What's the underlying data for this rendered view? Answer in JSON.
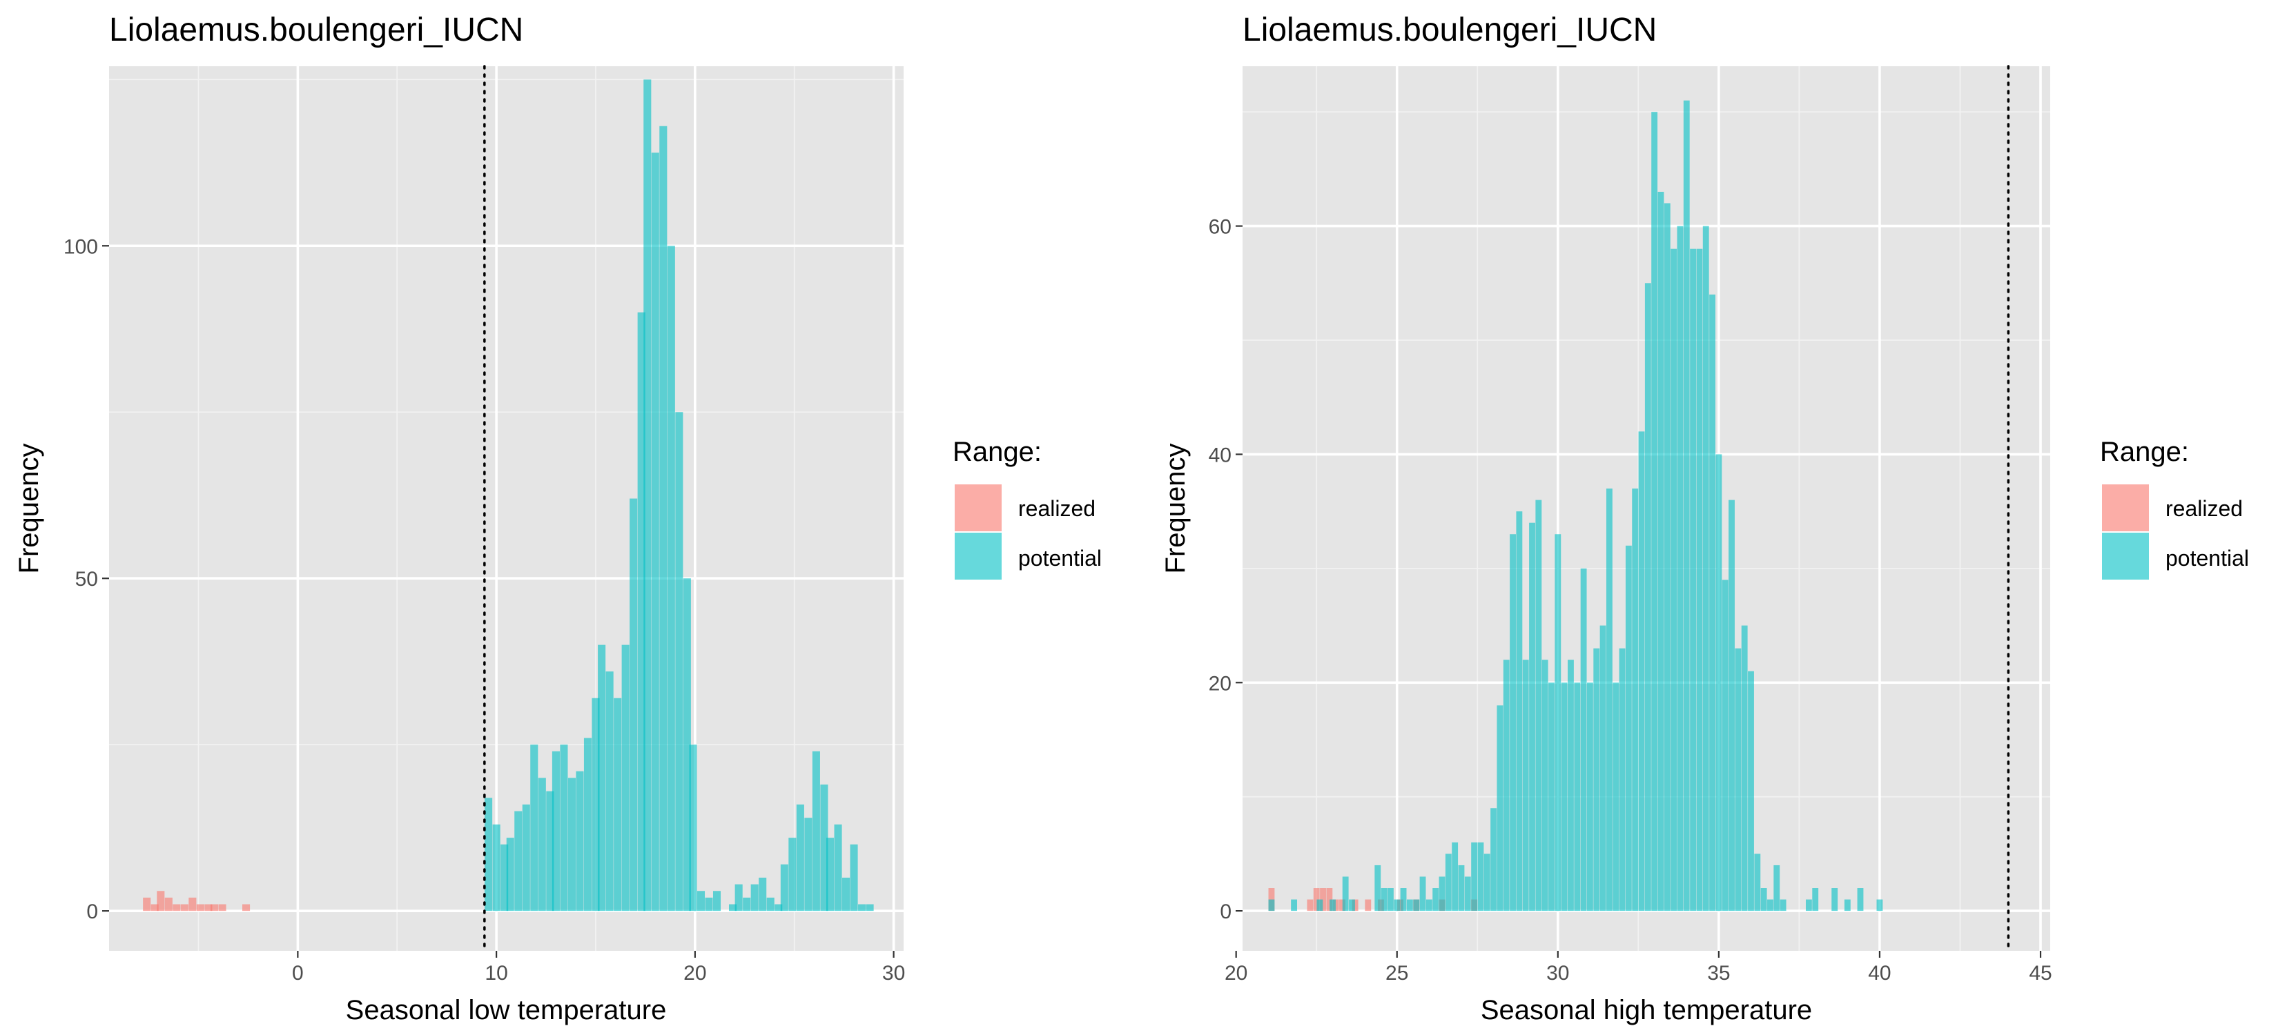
{
  "colors": {
    "realized": "#F8766D",
    "potential": "#00BFC4",
    "panel": "#e5e5e5",
    "bar_alpha": 0.6
  },
  "chart_data": [
    {
      "type": "histogram",
      "title": "Liolaemus.boulengeri_IUCN",
      "xlabel": "Seasonal low temperature",
      "ylabel": "Frequency",
      "xlim": [
        -9.5,
        30.5
      ],
      "ylim": [
        -6,
        127
      ],
      "x_ticks": [
        0,
        10,
        20,
        30
      ],
      "y_ticks": [
        0,
        50,
        100
      ],
      "bin_width": 0.385,
      "vline": 9.4,
      "legend": {
        "title": "Range:",
        "entries": [
          "realized",
          "potential"
        ],
        "position": "right"
      },
      "series": [
        {
          "name": "realized",
          "color_key": "realized",
          "x": [
            -7.6,
            -7.2,
            -6.9,
            -6.5,
            -6.1,
            -5.7,
            -5.3,
            -4.9,
            -4.5,
            -4.2,
            -3.8,
            -2.6
          ],
          "values": [
            2,
            1,
            3,
            2,
            1,
            1,
            2,
            1,
            1,
            1,
            1,
            1
          ]
        },
        {
          "name": "potential",
          "color_key": "potential",
          "x": [
            9.6,
            10.0,
            10.4,
            10.7,
            11.1,
            11.5,
            11.9,
            12.3,
            12.7,
            13.0,
            13.4,
            13.8,
            14.2,
            14.6,
            15.0,
            15.3,
            15.7,
            16.1,
            16.5,
            16.9,
            17.3,
            17.6,
            18.0,
            18.4,
            18.8,
            19.2,
            19.6,
            19.9,
            20.3,
            20.7,
            21.1,
            21.9,
            22.2,
            22.6,
            23.0,
            23.4,
            23.8,
            24.2,
            24.5,
            24.9,
            25.3,
            25.7,
            26.1,
            26.5,
            26.8,
            27.2,
            27.6,
            28.0,
            28.4,
            28.8
          ],
          "values": [
            17,
            13,
            10,
            11,
            15,
            16,
            25,
            20,
            18,
            24,
            25,
            20,
            21,
            26,
            32,
            40,
            36,
            32,
            40,
            62,
            90,
            125,
            114,
            118,
            100,
            75,
            50,
            25,
            3,
            2,
            3,
            1,
            4,
            2,
            4,
            5,
            2,
            1,
            7,
            11,
            16,
            14,
            24,
            19,
            11,
            13,
            5,
            10,
            1,
            1
          ]
        }
      ]
    },
    {
      "type": "histogram",
      "title": "Liolaemus.boulengeri_IUCN",
      "xlabel": "Seasonal high temperature",
      "ylabel": "Frequency",
      "xlim": [
        20.2,
        45.3
      ],
      "ylim": [
        -3.5,
        74
      ],
      "x_ticks": [
        20,
        25,
        30,
        35,
        40,
        45
      ],
      "y_ticks": [
        0,
        20,
        40,
        60
      ],
      "bin_width": 0.19,
      "vline": 44,
      "legend": {
        "title": "Range:",
        "entries": [
          "realized",
          "potential"
        ],
        "position": "right"
      },
      "series": [
        {
          "name": "realized",
          "color_key": "realized",
          "x": [
            21.1,
            22.3,
            22.5,
            22.7,
            22.9,
            23.1,
            23.3,
            23.7,
            24.1,
            24.5,
            25.1,
            25.6,
            26.4,
            27.4
          ],
          "values": [
            2,
            1,
            2,
            2,
            2,
            1,
            1,
            1,
            1,
            1,
            1,
            1,
            1,
            1
          ]
        },
        {
          "name": "potential",
          "color_key": "potential",
          "x": [
            21.1,
            21.8,
            22.6,
            23.0,
            23.4,
            23.6,
            24.4,
            24.6,
            24.8,
            25.0,
            25.2,
            25.4,
            25.6,
            25.8,
            26.0,
            26.2,
            26.4,
            26.6,
            26.8,
            27.0,
            27.2,
            27.4,
            27.6,
            27.8,
            28.0,
            28.2,
            28.4,
            28.6,
            28.8,
            29.0,
            29.2,
            29.4,
            29.6,
            29.8,
            30.0,
            30.2,
            30.4,
            30.6,
            30.8,
            31.0,
            31.2,
            31.4,
            31.6,
            31.8,
            32.0,
            32.2,
            32.4,
            32.6,
            32.8,
            33.0,
            33.2,
            33.4,
            33.6,
            33.8,
            34.0,
            34.2,
            34.4,
            34.6,
            34.8,
            35.0,
            35.2,
            35.4,
            35.6,
            35.8,
            36.0,
            36.2,
            36.4,
            36.6,
            36.8,
            37.0,
            37.8,
            38.0,
            38.6,
            39.0,
            39.4,
            40.0
          ],
          "values": [
            1,
            1,
            1,
            1,
            3,
            1,
            4,
            2,
            2,
            1,
            2,
            1,
            1,
            3,
            1,
            2,
            3,
            5,
            6,
            4,
            3,
            6,
            6,
            5,
            9,
            18,
            22,
            33,
            35,
            22,
            34,
            36,
            22,
            20,
            33,
            20,
            22,
            20,
            30,
            20,
            23,
            25,
            37,
            20,
            23,
            32,
            37,
            42,
            55,
            70,
            63,
            62,
            58,
            60,
            71,
            58,
            58,
            60,
            54,
            40,
            29,
            36,
            23,
            25,
            21,
            5,
            2,
            1,
            4,
            1,
            1,
            2,
            2,
            1,
            2,
            1
          ]
        }
      ]
    }
  ]
}
